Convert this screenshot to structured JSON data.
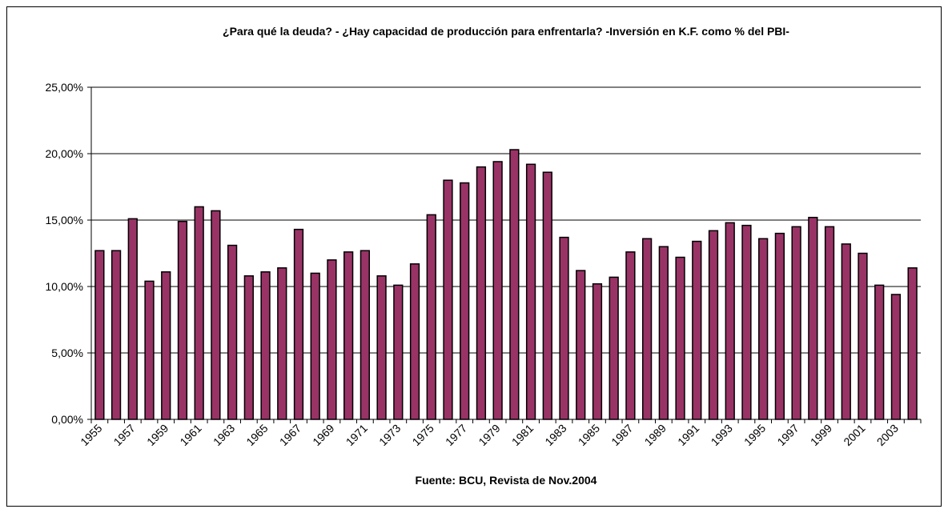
{
  "chart_data": {
    "type": "bar",
    "title": "¿Para qué la deuda? - ¿Hay capacidad de producción para enfrentarla? -Inversión en K.F. como %  del PBI-",
    "source": "Fuente: BCU, Revista de Nov.2004",
    "categories": [
      "1955",
      null,
      "1957",
      null,
      "1959",
      null,
      "1961",
      null,
      "1963",
      null,
      "1965",
      null,
      "1967",
      null,
      "1969",
      null,
      "1971",
      null,
      "1973",
      null,
      "1975",
      null,
      "1977",
      null,
      "1979",
      null,
      "1981",
      null,
      "1983",
      null,
      "1985",
      null,
      "1987",
      null,
      "1989",
      null,
      "1991",
      null,
      "1993",
      null,
      "1995",
      null,
      "1997",
      null,
      "1999",
      null,
      "2001",
      null,
      "2003",
      null
    ],
    "values": [
      12.7,
      12.7,
      15.1,
      10.4,
      11.1,
      14.9,
      16.0,
      15.7,
      13.1,
      10.8,
      11.1,
      11.4,
      14.3,
      11.0,
      12.0,
      12.6,
      12.7,
      10.8,
      10.1,
      11.7,
      15.4,
      18.0,
      17.8,
      19.0,
      19.4,
      20.3,
      19.2,
      18.6,
      13.7,
      11.2,
      10.2,
      10.7,
      12.6,
      13.6,
      13.0,
      12.2,
      13.4,
      14.2,
      14.8,
      14.6,
      13.6,
      14.0,
      14.5,
      15.2,
      14.5,
      13.2,
      12.5,
      10.1,
      9.4,
      11.4
    ],
    "color": "#993366",
    "ylim": [
      0,
      25
    ],
    "yticks": [
      {
        "value": 0,
        "label": "0,00%"
      },
      {
        "value": 5,
        "label": "5,00%"
      },
      {
        "value": 10,
        "label": "10,00%"
      },
      {
        "value": 15,
        "label": "15,00%"
      },
      {
        "value": 20,
        "label": "20,00%"
      },
      {
        "value": 25,
        "label": "25,00%"
      }
    ],
    "grid": true
  }
}
